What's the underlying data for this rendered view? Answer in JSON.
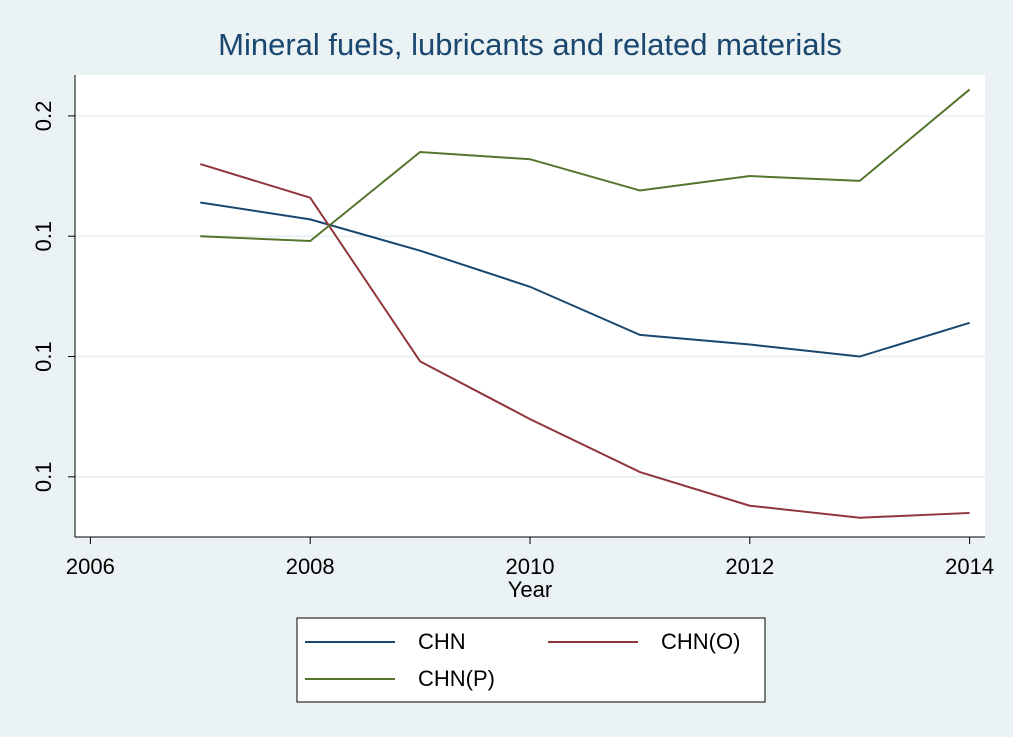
{
  "chart_data": {
    "type": "line",
    "title": "Mineral fuels, lubricants and related materials",
    "x_label": "Year",
    "x": [
      2007,
      2008,
      2009,
      2010,
      2011,
      2012,
      2013,
      2014
    ],
    "xlim": [
      2005.86,
      2014.14
    ],
    "xticks": [
      2006,
      2008,
      2010,
      2012,
      2014
    ],
    "ylim": [
      0.025,
      0.217
    ],
    "yticks": [
      {
        "value": 0.05,
        "label": "0.1"
      },
      0.1,
      {
        "value": 0.15,
        "label": "0.1"
      },
      0.2
    ],
    "grid": true,
    "series": [
      {
        "name": "CHN",
        "color": "#1a476f",
        "values": [
          0.164,
          0.157,
          0.144,
          0.129,
          0.109,
          0.105,
          0.1,
          0.114
        ]
      },
      {
        "name": "CHN(O)",
        "color": "#90353b",
        "values": [
          0.18,
          0.166,
          0.098,
          0.074,
          0.052,
          0.038,
          0.033,
          0.035
        ]
      },
      {
        "name": "CHN(P)",
        "color": "#55752f",
        "values": [
          0.15,
          0.148,
          0.185,
          0.182,
          0.169,
          0.175,
          0.173,
          0.211
        ]
      }
    ]
  }
}
